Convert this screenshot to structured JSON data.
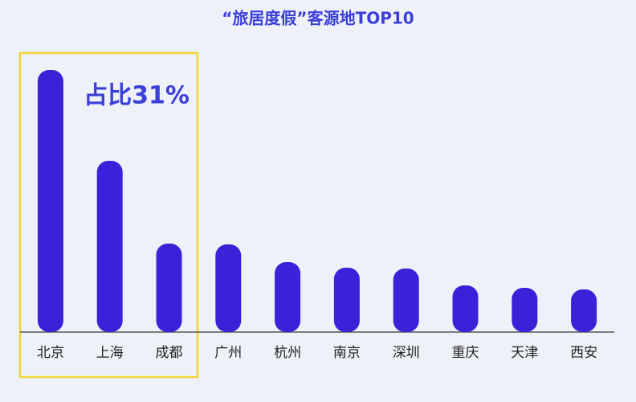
{
  "chart_data": {
    "type": "bar",
    "title": "“旅居度假”客源地TOP10",
    "annotation": "占比31%",
    "categories": [
      "北京",
      "上海",
      "成都",
      "广州",
      "杭州",
      "南京",
      "深圳",
      "重庆",
      "天津",
      "西安"
    ],
    "values": [
      326,
      213,
      110,
      109,
      87,
      80,
      79,
      58,
      55,
      53
    ],
    "color": "#3a22d8",
    "ylim": [
      0,
      340
    ]
  }
}
